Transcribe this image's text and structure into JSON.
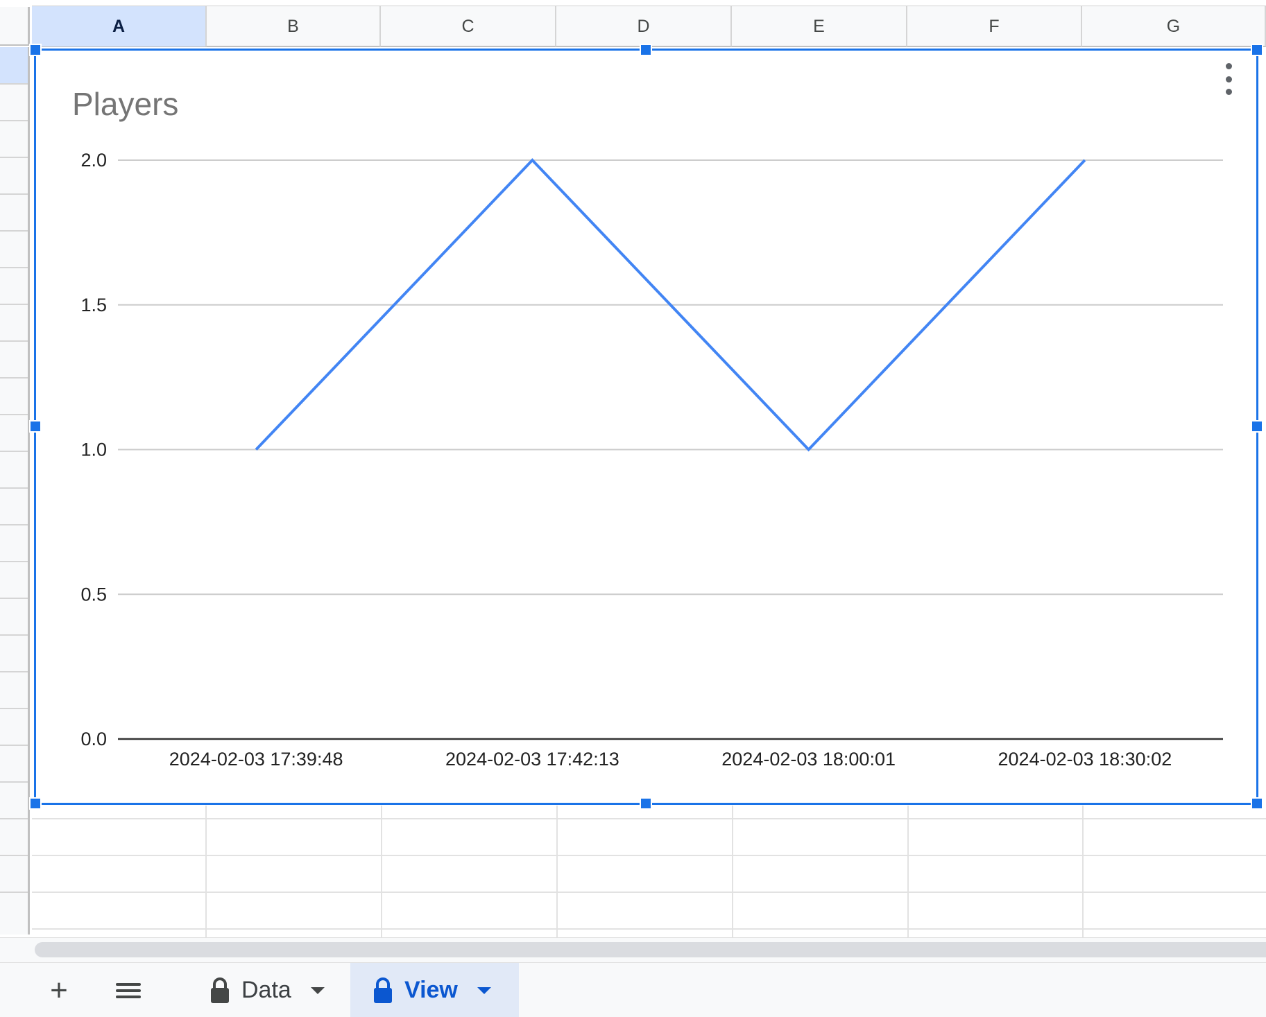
{
  "columns": [
    "A",
    "B",
    "C",
    "D",
    "E",
    "F",
    "G"
  ],
  "selected_column": "A",
  "tabs": {
    "data_label": "Data",
    "view_label": "View",
    "active": "View"
  },
  "toolbar_icons": {
    "add_sheet": "plus-icon",
    "all_sheets": "menu-icon",
    "chart_menu": "more-vertical-icon"
  },
  "colors": {
    "series": "#4285f4",
    "selection": "#1a73e8",
    "active_tab_text": "#0b57d0"
  },
  "chart_data": {
    "type": "line",
    "title": "Players",
    "xlabel": "",
    "ylabel": "",
    "categories": [
      "2024-02-03 17:39:48",
      "2024-02-03 17:42:13",
      "2024-02-03 18:00:01",
      "2024-02-03 18:30:02"
    ],
    "series": [
      {
        "values": [
          1,
          2,
          1,
          2
        ]
      }
    ],
    "y_ticks": [
      "0.0",
      "0.5",
      "1.0",
      "1.5",
      "2.0"
    ],
    "ylim": [
      0,
      2
    ],
    "grid": true,
    "legend": "none"
  }
}
